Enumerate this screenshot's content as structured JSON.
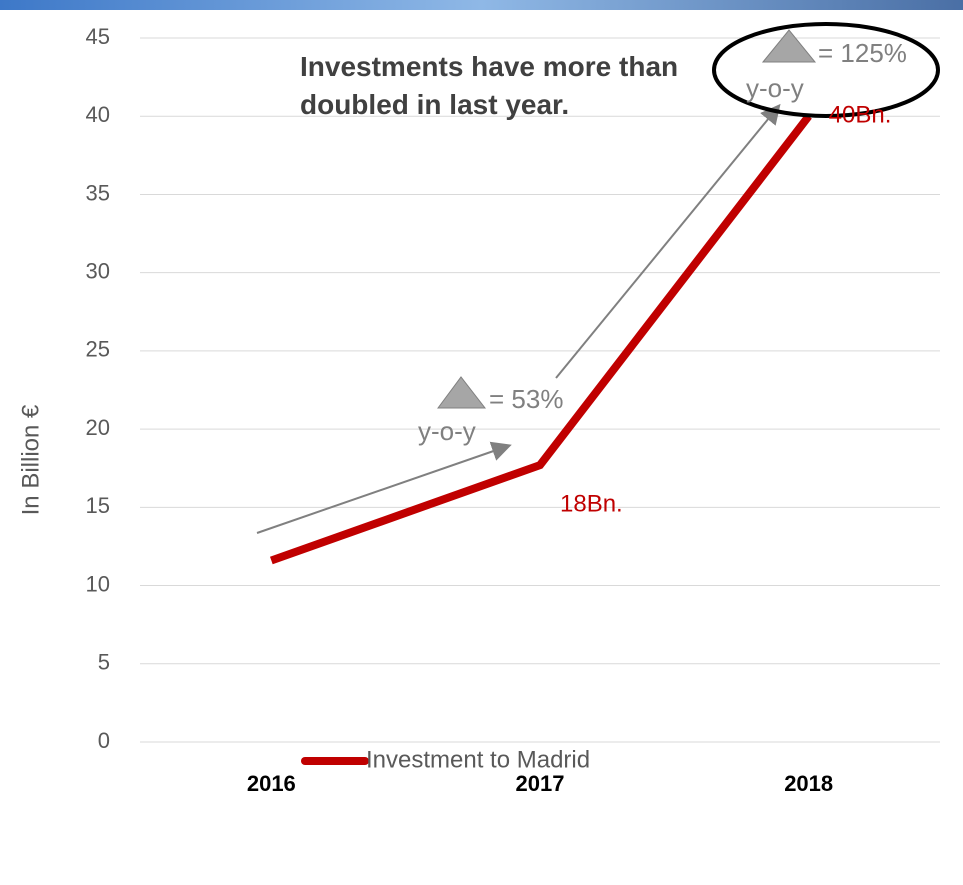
{
  "chart_data": {
    "type": "line",
    "y_label": "In Billion €",
    "categories": [
      "2016",
      "2017",
      "2018"
    ],
    "series": [
      {
        "name": "Investment to Madrid",
        "color": "#c00000",
        "values": [
          11.6,
          17.7,
          40
        ],
        "value_labels": [
          null,
          "18Bn.",
          "40Bn."
        ]
      }
    ],
    "ylim": [
      0,
      45
    ],
    "yticks": [
      0,
      5,
      10,
      15,
      20,
      25,
      30,
      35,
      40,
      45
    ],
    "grid": true,
    "legend": "bottom",
    "annotations": [
      {
        "text": "Investments have more than doubled in last year."
      },
      {
        "text": "= 53%"
      },
      {
        "text": "y-o-y"
      },
      {
        "text": "= 125%"
      },
      {
        "text": "y-o-y"
      }
    ]
  }
}
